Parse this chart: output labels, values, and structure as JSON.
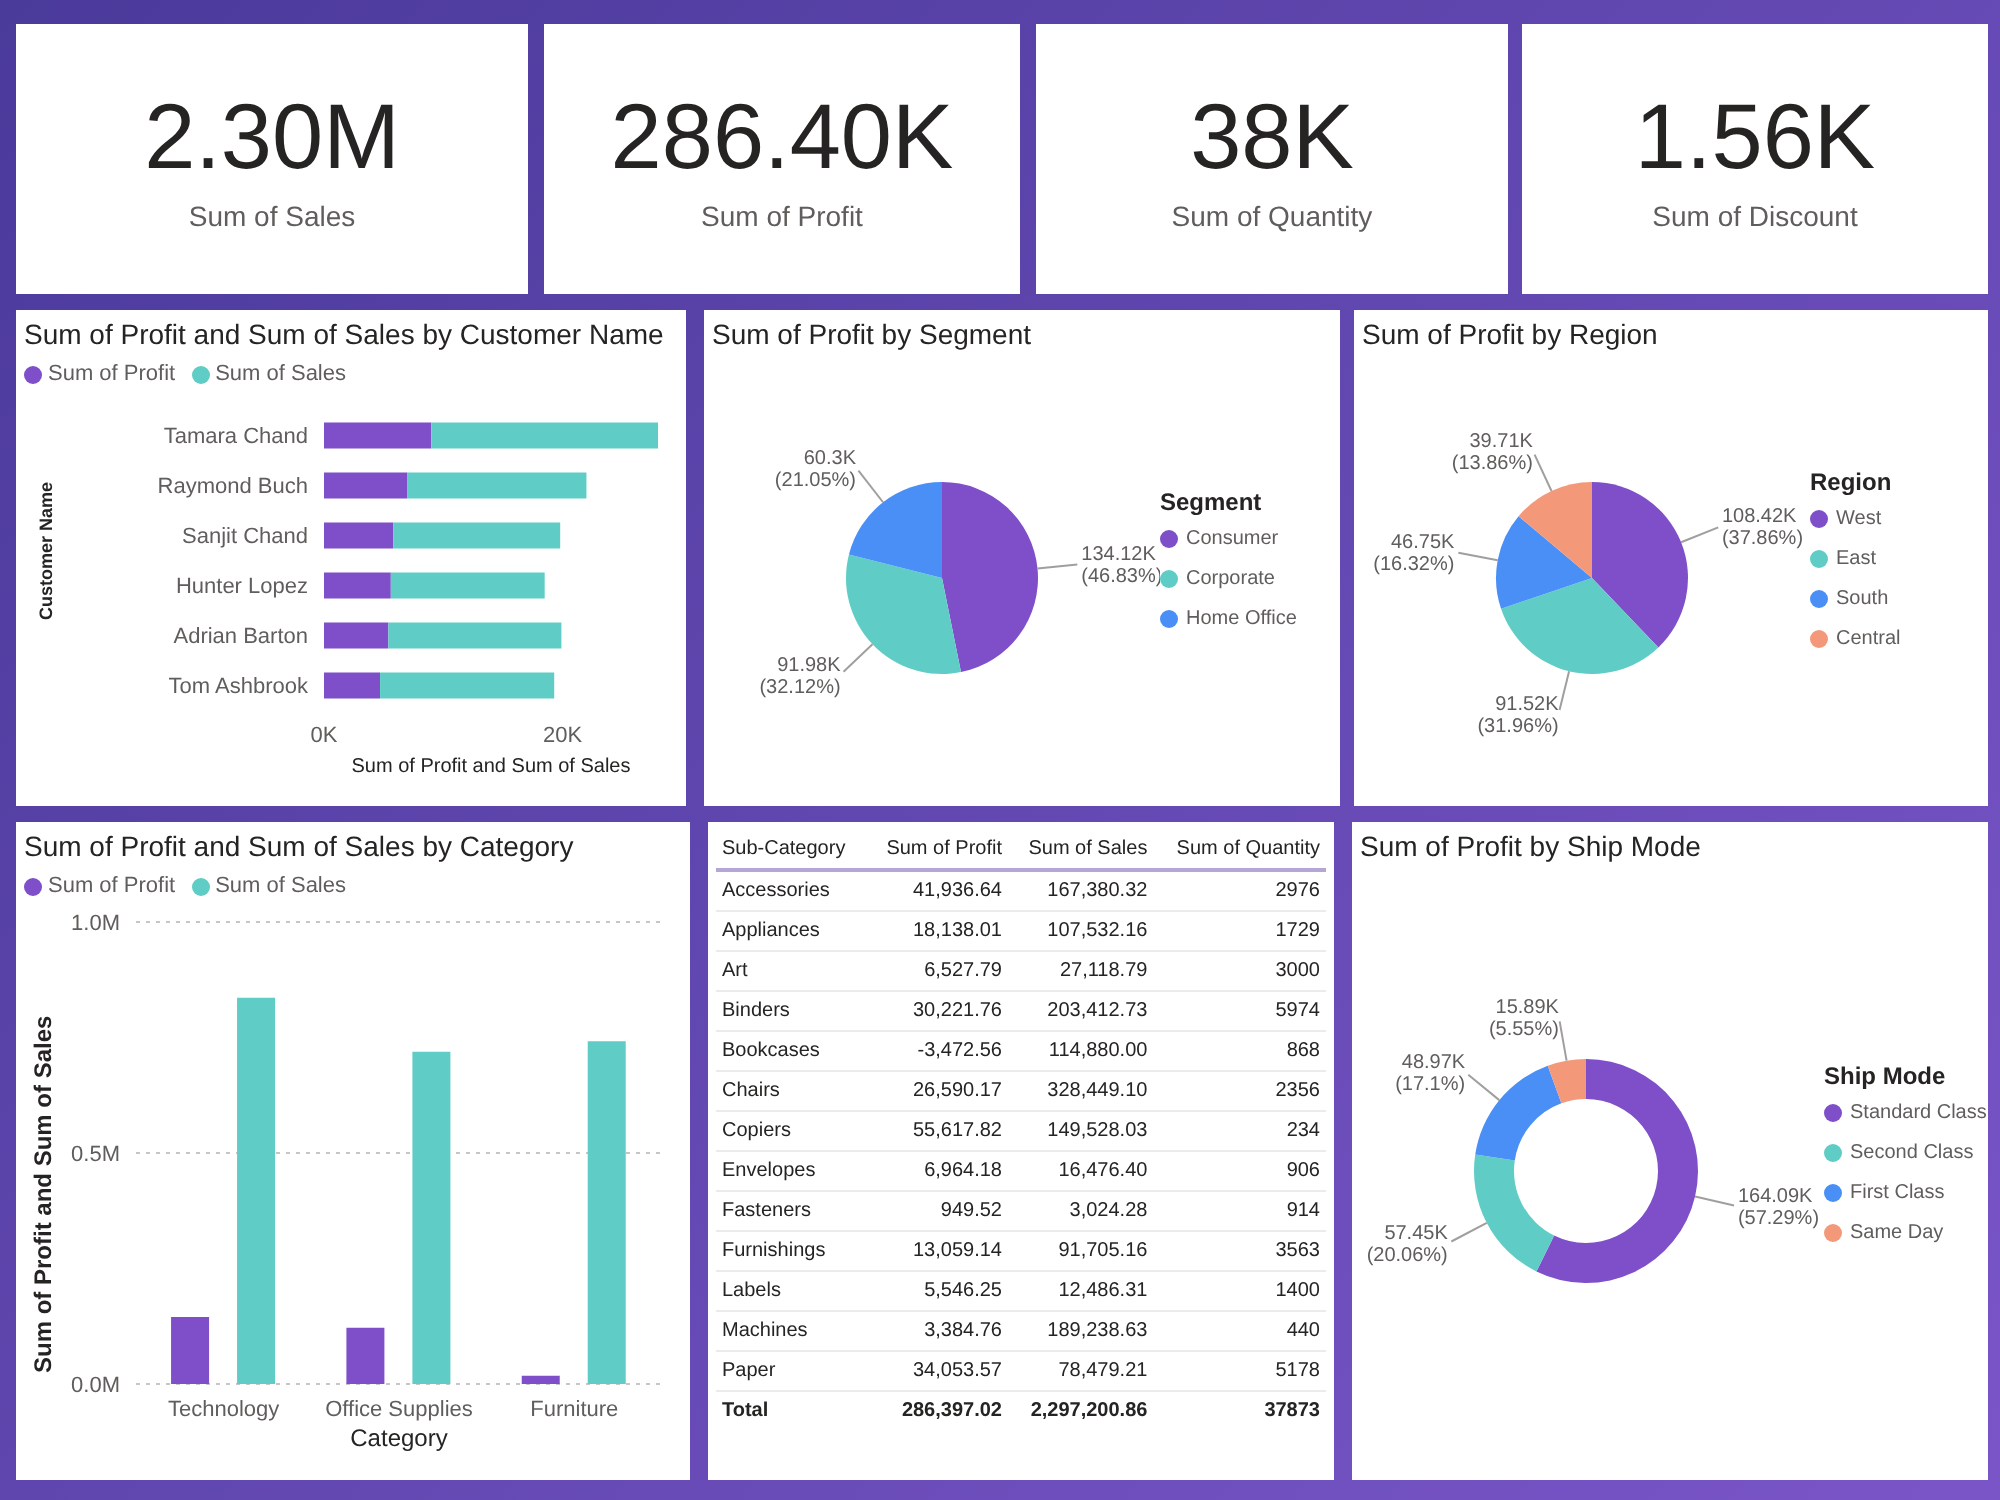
{
  "chart_data": [
    {
      "type": "other",
      "title": "Sum of Sales",
      "annotations": [
        "2.30M"
      ]
    },
    {
      "type": "other",
      "title": "Sum of Profit",
      "annotations": [
        "286.40K"
      ]
    },
    {
      "type": "other",
      "title": "Sum of Quantity",
      "annotations": [
        "38K"
      ]
    },
    {
      "type": "other",
      "title": "Sum of Discount",
      "annotations": [
        "1.56K"
      ]
    },
    {
      "type": "bar",
      "title": "Sum of Profit and Sum of Sales by Customer Name",
      "orientation": "horizontal",
      "stacked": true,
      "categories": [
        "Tamara Chand",
        "Raymond Buch",
        "Sanjit Chand",
        "Hunter Lopez",
        "Adrian Barton",
        "Tom Ashbrook"
      ],
      "series": [
        {
          "name": "Sum of Profit",
          "color": "#7e4fc9",
          "values": [
            9000,
            7000,
            5800,
            5600,
            5400,
            4700
          ]
        },
        {
          "name": "Sum of Sales",
          "color": "#5fcdc5",
          "values": [
            19000,
            15000,
            14000,
            12900,
            14500,
            14600
          ]
        }
      ],
      "xlim": [
        0,
        28000
      ],
      "xticks": [
        {
          "value": 0,
          "label": "0K"
        },
        {
          "value": 20000,
          "label": "20K"
        }
      ],
      "xlabel": "Sum of Profit and Sum of Sales",
      "ylabel": "Customer Name",
      "legend": "top left"
    },
    {
      "type": "pie",
      "title": "Sum of Profit by Segment",
      "legend_title": "Segment",
      "legend": "right",
      "categories": [
        "Consumer",
        "Corporate",
        "Home Office"
      ],
      "values": [
        134120,
        91980,
        60300
      ],
      "value_labels": [
        "134.12K (46.83%)",
        "91.98K (32.12%)",
        "60.3K (21.05%)"
      ],
      "colors": [
        "#7e4fc9",
        "#5fcdc5",
        "#4a8ff5"
      ]
    },
    {
      "type": "pie",
      "title": "Sum of Profit by Region",
      "legend_title": "Region",
      "legend": "right",
      "categories": [
        "West",
        "East",
        "South",
        "Central"
      ],
      "values": [
        108420,
        91520,
        46750,
        39710
      ],
      "value_labels": [
        "108.42K (37.86%)",
        "91.52K (31.96%)",
        "46.75K (16.32%)",
        "39.71K (13.86%)"
      ],
      "colors": [
        "#7e4fc9",
        "#5fcdc5",
        "#4a8ff5",
        "#f4987a"
      ]
    },
    {
      "type": "bar",
      "title": "Sum of Profit and Sum of Sales by Category",
      "categories": [
        "Technology",
        "Office Supplies",
        "Furniture"
      ],
      "series": [
        {
          "name": "Sum of Profit",
          "color": "#7e4fc9",
          "values": [
            145000,
            122000,
            18000
          ]
        },
        {
          "name": "Sum of Sales",
          "color": "#5fcdc5",
          "values": [
            836000,
            719000,
            742000
          ]
        }
      ],
      "ylim": [
        0,
        1000000
      ],
      "yticks": [
        {
          "value": 0,
          "label": "0.0M"
        },
        {
          "value": 500000,
          "label": "0.5M"
        },
        {
          "value": 1000000,
          "label": "1.0M"
        }
      ],
      "xlabel": "Category",
      "ylabel": "Sum of Profit and Sum of Sales",
      "legend": "top left",
      "grid": "y"
    },
    {
      "type": "other",
      "xlabel": "Sub-Category",
      "categories": [
        "Accessories",
        "Appliances",
        "Art",
        "Binders",
        "Bookcases",
        "Chairs",
        "Copiers",
        "Envelopes",
        "Fasteners",
        "Furnishings",
        "Labels",
        "Machines",
        "Paper"
      ],
      "series": [
        {
          "name": "Sum of Profit",
          "values": [
            41936.64,
            18138.01,
            6527.79,
            30221.76,
            -3472.56,
            26590.17,
            55617.82,
            6964.18,
            949.52,
            13059.14,
            5546.25,
            3384.76,
            34053.57
          ],
          "value_labels": [
            "41,936.64",
            "18,138.01",
            "6,527.79",
            "30,221.76",
            "-3,472.56",
            "26,590.17",
            "55,617.82",
            "6,964.18",
            "949.52",
            "13,059.14",
            "5,546.25",
            "3,384.76",
            "34,053.57"
          ]
        },
        {
          "name": "Sum of Sales",
          "values": [
            167380.32,
            107532.16,
            27118.79,
            203412.73,
            114880.0,
            328449.1,
            149528.03,
            16476.4,
            3024.28,
            91705.16,
            12486.31,
            189238.63,
            78479.21
          ],
          "value_labels": [
            "167,380.32",
            "107,532.16",
            "27,118.79",
            "203,412.73",
            "114,880.00",
            "328,449.10",
            "149,528.03",
            "16,476.40",
            "3,024.28",
            "91,705.16",
            "12,486.31",
            "189,238.63",
            "78,479.21"
          ]
        },
        {
          "name": "Sum of Quantity",
          "values": [
            2976,
            1729,
            3000,
            5974,
            868,
            2356,
            234,
            906,
            914,
            3563,
            1400,
            440,
            5178
          ],
          "value_labels": [
            "2976",
            "1729",
            "3000",
            "5974",
            "868",
            "2356",
            "234",
            "906",
            "914",
            "3563",
            "1400",
            "440",
            "5178"
          ]
        }
      ],
      "annotations": [
        "Total"
      ],
      "totals": [
        "286,397.02",
        "2,297,200.86",
        "37873"
      ]
    },
    {
      "type": "donut",
      "title": "Sum of Profit by Ship Mode",
      "legend_title": "Ship Mode",
      "legend": "right",
      "categories": [
        "Standard Class",
        "Second Class",
        "First Class",
        "Same Day"
      ],
      "values": [
        164090,
        57450,
        48970,
        15890
      ],
      "value_labels": [
        "164.09K (57.29%)",
        "57.45K (20.06%)",
        "48.97K (17.1%)",
        "15.89K (5.55%)"
      ],
      "colors": [
        "#7e4fc9",
        "#5fcdc5",
        "#4a8ff5",
        "#f4987a"
      ]
    }
  ]
}
